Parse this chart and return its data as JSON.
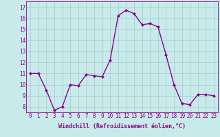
{
  "hours": [
    0,
    1,
    2,
    3,
    4,
    5,
    6,
    7,
    8,
    9,
    10,
    11,
    12,
    13,
    14,
    15,
    16,
    17,
    18,
    19,
    20,
    21,
    22,
    23
  ],
  "values": [
    11,
    11,
    9.5,
    7.7,
    8.0,
    10.0,
    9.9,
    10.9,
    10.8,
    10.7,
    12.2,
    16.2,
    16.7,
    16.4,
    15.4,
    15.5,
    15.2,
    12.7,
    10.0,
    8.3,
    8.2,
    9.1,
    9.1,
    9.0
  ],
  "line_color": "#8b008b",
  "marker": "D",
  "marker_size": 2.0,
  "line_width": 1.0,
  "bg_color": "#c8eaea",
  "grid_color": "#a0cccc",
  "xlabel": "Windchill (Refroidissement éolien,°C)",
  "xlabel_fontsize": 6.0,
  "tick_color": "#8b008b",
  "tick_fontsize": 5.5,
  "ylim": [
    7.5,
    17.5
  ],
  "yticks": [
    8,
    9,
    10,
    11,
    12,
    13,
    14,
    15,
    16,
    17
  ],
  "xlim": [
    -0.5,
    23.5
  ]
}
